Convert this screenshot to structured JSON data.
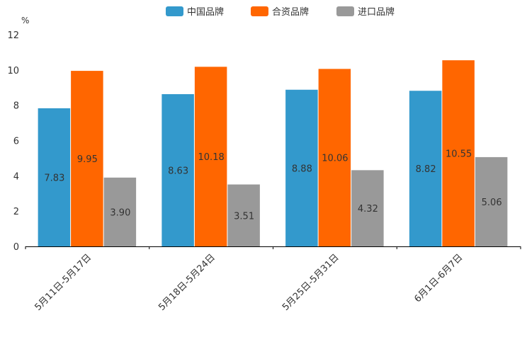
{
  "chart_data": {
    "type": "bar",
    "title": "",
    "xlabel": "",
    "ylabel": "%",
    "ylim": [
      0,
      12
    ],
    "yticks": [
      0,
      2,
      4,
      6,
      8,
      10,
      12
    ],
    "legend_position": "top-center",
    "categories": [
      "5月11日-5月17日",
      "5月18日-5月24日",
      "5月25日-5月31日",
      "6月1日-6月7日"
    ],
    "series": [
      {
        "name": "中国品牌",
        "color": "#3399cc",
        "values": [
          7.83,
          8.63,
          8.88,
          8.82
        ],
        "labels": [
          "7.83",
          "8.63",
          "8.88",
          "8.82"
        ]
      },
      {
        "name": "合资品牌",
        "color": "#ff6600",
        "values": [
          9.95,
          10.18,
          10.06,
          10.55
        ],
        "labels": [
          "9.95",
          "10.18",
          "10.06",
          "10.55"
        ]
      },
      {
        "name": "进口品牌",
        "color": "#999999",
        "values": [
          3.9,
          3.51,
          4.32,
          5.06
        ],
        "labels": [
          "3.90",
          "3.51",
          "4.32",
          "5.06"
        ]
      }
    ]
  }
}
